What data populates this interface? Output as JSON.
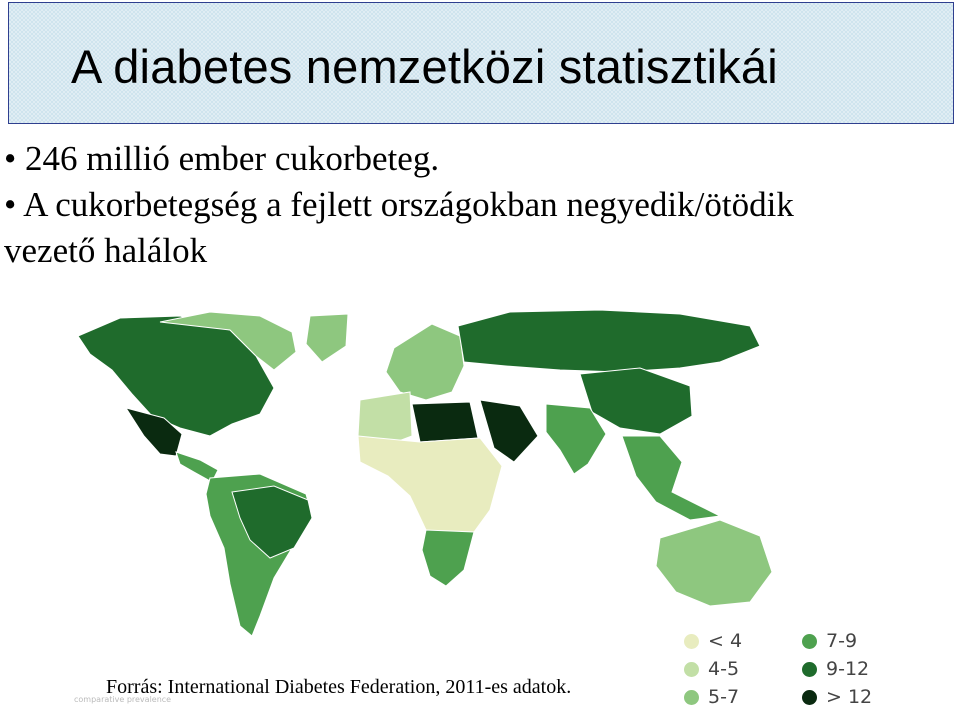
{
  "title": "A diabetes nemzetközi statisztikái",
  "bullets": [
    "246 millió ember cukorbeteg.",
    "A cukorbetegség a fejlett országokban negyedik/ötödik",
    "vezető halálok"
  ],
  "bullet_marker": "•",
  "legend": [
    {
      "label": "< 4",
      "color": "#e8ecbf"
    },
    {
      "label": "4-5",
      "color": "#c2dfa6"
    },
    {
      "label": "5-7",
      "color": "#8ec77f"
    },
    {
      "label": "7-9",
      "color": "#4ea14f"
    },
    {
      "label": "9-12",
      "color": "#1f6b2c"
    },
    {
      "label": "> 12",
      "color": "#0a2a10"
    }
  ],
  "source": "Forrás: International Diabetes Federation, 2011-es adatok.",
  "map_caption": "comparative prevalence",
  "regions": [
    {
      "name": "north-america",
      "class": "9-12"
    },
    {
      "name": "canada-north",
      "class": "5-7"
    },
    {
      "name": "greenland",
      "class": "5-7"
    },
    {
      "name": "mexico",
      "class": "> 12"
    },
    {
      "name": "central-america",
      "class": "7-9"
    },
    {
      "name": "south-america",
      "class": "7-9"
    },
    {
      "name": "brazil",
      "class": "9-12"
    },
    {
      "name": "europe",
      "class": "5-7"
    },
    {
      "name": "russia",
      "class": "9-12"
    },
    {
      "name": "north-africa",
      "class": "4-5"
    },
    {
      "name": "egypt-libya",
      "class": "> 12"
    },
    {
      "name": "arabia",
      "class": "> 12"
    },
    {
      "name": "sub-saharan-africa",
      "class": "< 4"
    },
    {
      "name": "southern-africa",
      "class": "7-9"
    },
    {
      "name": "india",
      "class": "7-9"
    },
    {
      "name": "china",
      "class": "9-12"
    },
    {
      "name": "southeast-asia",
      "class": "7-9"
    },
    {
      "name": "australia",
      "class": "5-7"
    }
  ]
}
